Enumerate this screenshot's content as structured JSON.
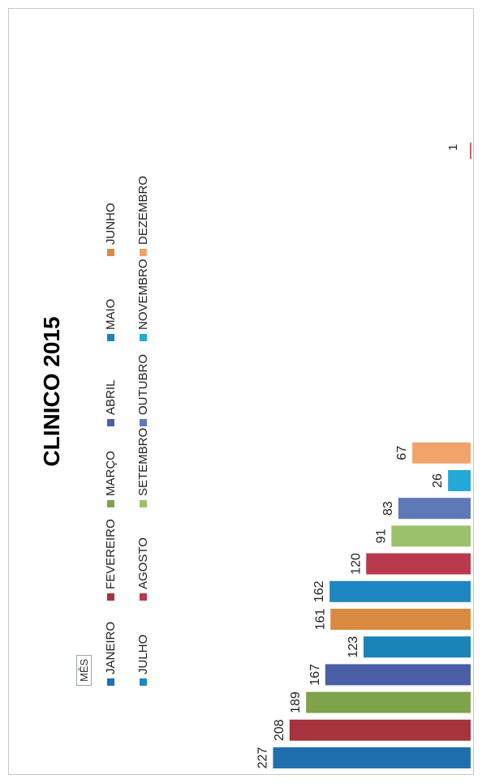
{
  "chart_data": {
    "type": "bar",
    "title": "CLINICO 2015",
    "legend_title": "MÊS",
    "x_tick_label": "1",
    "categories": [
      "1"
    ],
    "series": [
      {
        "name": "JANEIRO",
        "value": 227,
        "color": "#1f6fae"
      },
      {
        "name": "FEVEREIRO",
        "value": 208,
        "color": "#a7333c"
      },
      {
        "name": "MARÇO",
        "value": 189,
        "color": "#7ea34a"
      },
      {
        "name": "ABRIL",
        "value": 167,
        "color": "#4b5fa6"
      },
      {
        "name": "MAIO",
        "value": 123,
        "color": "#1a84b8"
      },
      {
        "name": "JUNHO",
        "value": 161,
        "color": "#d98a41"
      },
      {
        "name": "JULHO",
        "value": 162,
        "color": "#1e86c1"
      },
      {
        "name": "AGOSTO",
        "value": 120,
        "color": "#b83a4c"
      },
      {
        "name": "SETEMBRO",
        "value": 91,
        "color": "#9cc16d"
      },
      {
        "name": "OUTUBRO",
        "value": 83,
        "color": "#5f78b8"
      },
      {
        "name": "NOVEMBRO",
        "value": 26,
        "color": "#22a9d8"
      },
      {
        "name": "DEZEMBRO",
        "value": 67,
        "color": "#f2a36c"
      }
    ],
    "legend_position": "top",
    "grid": false,
    "ylim": [
      0,
      240
    ]
  }
}
